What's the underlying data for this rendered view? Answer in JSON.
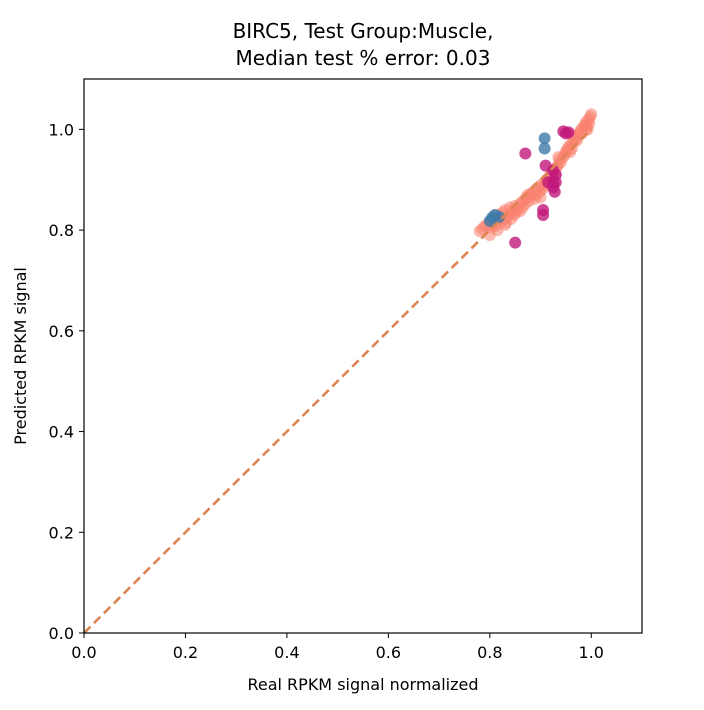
{
  "chart_data": {
    "type": "scatter",
    "title_lines": [
      "BIRC5, Test Group:Muscle,",
      "Median test % error: 0.03"
    ],
    "xlabel": "Real RPKM signal normalized",
    "ylabel": "Predicted RPKM signal",
    "xlim": [
      0.0,
      1.1
    ],
    "ylim": [
      0.0,
      1.1
    ],
    "xticks": [
      0.0,
      0.2,
      0.4,
      0.6,
      0.8,
      1.0
    ],
    "yticks": [
      0.0,
      0.2,
      0.4,
      0.6,
      0.8,
      1.0
    ],
    "xtick_labels": [
      "0.0",
      "0.2",
      "0.4",
      "0.6",
      "0.8",
      "1.0"
    ],
    "ytick_labels": [
      "0.0",
      "0.2",
      "0.4",
      "0.6",
      "0.8",
      "1.0"
    ],
    "grid": false,
    "reference_line": {
      "style": "dashed",
      "color": "#dd8452",
      "x": [
        0.0,
        1.0
      ],
      "y": [
        0.0,
        1.0
      ]
    },
    "series": [
      {
        "color": "#f9826f",
        "opacity": 0.55,
        "points": [
          [
            0.78,
            0.798
          ],
          [
            0.785,
            0.802
          ],
          [
            0.79,
            0.808
          ],
          [
            0.795,
            0.81
          ],
          [
            0.8,
            0.815
          ],
          [
            0.802,
            0.805
          ],
          [
            0.805,
            0.82
          ],
          [
            0.81,
            0.812
          ],
          [
            0.812,
            0.808
          ],
          [
            0.815,
            0.83
          ],
          [
            0.82,
            0.825
          ],
          [
            0.822,
            0.818
          ],
          [
            0.825,
            0.835
          ],
          [
            0.828,
            0.822
          ],
          [
            0.83,
            0.84
          ],
          [
            0.832,
            0.815
          ],
          [
            0.835,
            0.828
          ],
          [
            0.838,
            0.832
          ],
          [
            0.84,
            0.845
          ],
          [
            0.842,
            0.822
          ],
          [
            0.845,
            0.838
          ],
          [
            0.848,
            0.83
          ],
          [
            0.85,
            0.848
          ],
          [
            0.852,
            0.835
          ],
          [
            0.855,
            0.842
          ],
          [
            0.858,
            0.85
          ],
          [
            0.86,
            0.838
          ],
          [
            0.862,
            0.855
          ],
          [
            0.865,
            0.845
          ],
          [
            0.868,
            0.86
          ],
          [
            0.87,
            0.852
          ],
          [
            0.872,
            0.865
          ],
          [
            0.875,
            0.87
          ],
          [
            0.878,
            0.858
          ],
          [
            0.88,
            0.872
          ],
          [
            0.882,
            0.868
          ],
          [
            0.885,
            0.875
          ],
          [
            0.888,
            0.862
          ],
          [
            0.89,
            0.88
          ],
          [
            0.892,
            0.87
          ],
          [
            0.895,
            0.885
          ],
          [
            0.898,
            0.876
          ],
          [
            0.9,
            0.865
          ],
          [
            0.902,
            0.89
          ],
          [
            0.905,
            0.882
          ],
          [
            0.908,
            0.895
          ],
          [
            0.91,
            0.888
          ],
          [
            0.912,
            0.9
          ],
          [
            0.915,
            0.893
          ],
          [
            0.918,
            0.905
          ],
          [
            0.92,
            0.91
          ],
          [
            0.922,
            0.9
          ],
          [
            0.925,
            0.915
          ],
          [
            0.928,
            0.92
          ],
          [
            0.93,
            0.91
          ],
          [
            0.932,
            0.925
          ],
          [
            0.935,
            0.93
          ],
          [
            0.938,
            0.94
          ],
          [
            0.94,
            0.935
          ],
          [
            0.945,
            0.945
          ],
          [
            0.948,
            0.95
          ],
          [
            0.95,
            0.955
          ],
          [
            0.952,
            0.96
          ],
          [
            0.955,
            0.965
          ],
          [
            0.958,
            0.955
          ],
          [
            0.96,
            0.97
          ],
          [
            0.962,
            0.962
          ],
          [
            0.965,
            0.975
          ],
          [
            0.968,
            0.98
          ],
          [
            0.97,
            0.985
          ],
          [
            0.972,
            0.978
          ],
          [
            0.975,
            0.99
          ],
          [
            0.978,
            0.995
          ],
          [
            0.98,
            1.0
          ],
          [
            0.982,
            0.992
          ],
          [
            0.985,
            1.005
          ],
          [
            0.988,
            1.01
          ],
          [
            0.99,
            1.015
          ],
          [
            0.992,
            1.008
          ],
          [
            0.995,
            1.02
          ],
          [
            0.998,
            1.025
          ],
          [
            1.0,
            1.03
          ],
          [
            0.996,
            1.012
          ],
          [
            0.993,
            1.0
          ],
          [
            0.99,
            1.0
          ],
          [
            0.96,
            0.99
          ],
          [
            0.935,
            0.945
          ],
          [
            0.83,
            0.81
          ],
          [
            0.815,
            0.8
          ],
          [
            0.8,
            0.79
          ]
        ]
      },
      {
        "color": "#c2187c",
        "opacity": 0.8,
        "points": [
          [
            0.87,
            0.952
          ],
          [
            0.945,
            0.996
          ],
          [
            0.95,
            0.992
          ],
          [
            0.955,
            0.994
          ],
          [
            0.91,
            0.928
          ],
          [
            0.925,
            0.918
          ],
          [
            0.93,
            0.91
          ],
          [
            0.915,
            0.895
          ],
          [
            0.925,
            0.895
          ],
          [
            0.93,
            0.895
          ],
          [
            0.925,
            0.885
          ],
          [
            0.928,
            0.876
          ],
          [
            0.905,
            0.84
          ],
          [
            0.905,
            0.83
          ],
          [
            0.85,
            0.775
          ]
        ]
      },
      {
        "color": "#3d7aa8",
        "opacity": 0.8,
        "points": [
          [
            0.908,
            0.982
          ],
          [
            0.908,
            0.962
          ],
          [
            0.805,
            0.825
          ],
          [
            0.8,
            0.818
          ],
          [
            0.81,
            0.83
          ],
          [
            0.818,
            0.826
          ]
        ]
      }
    ]
  }
}
